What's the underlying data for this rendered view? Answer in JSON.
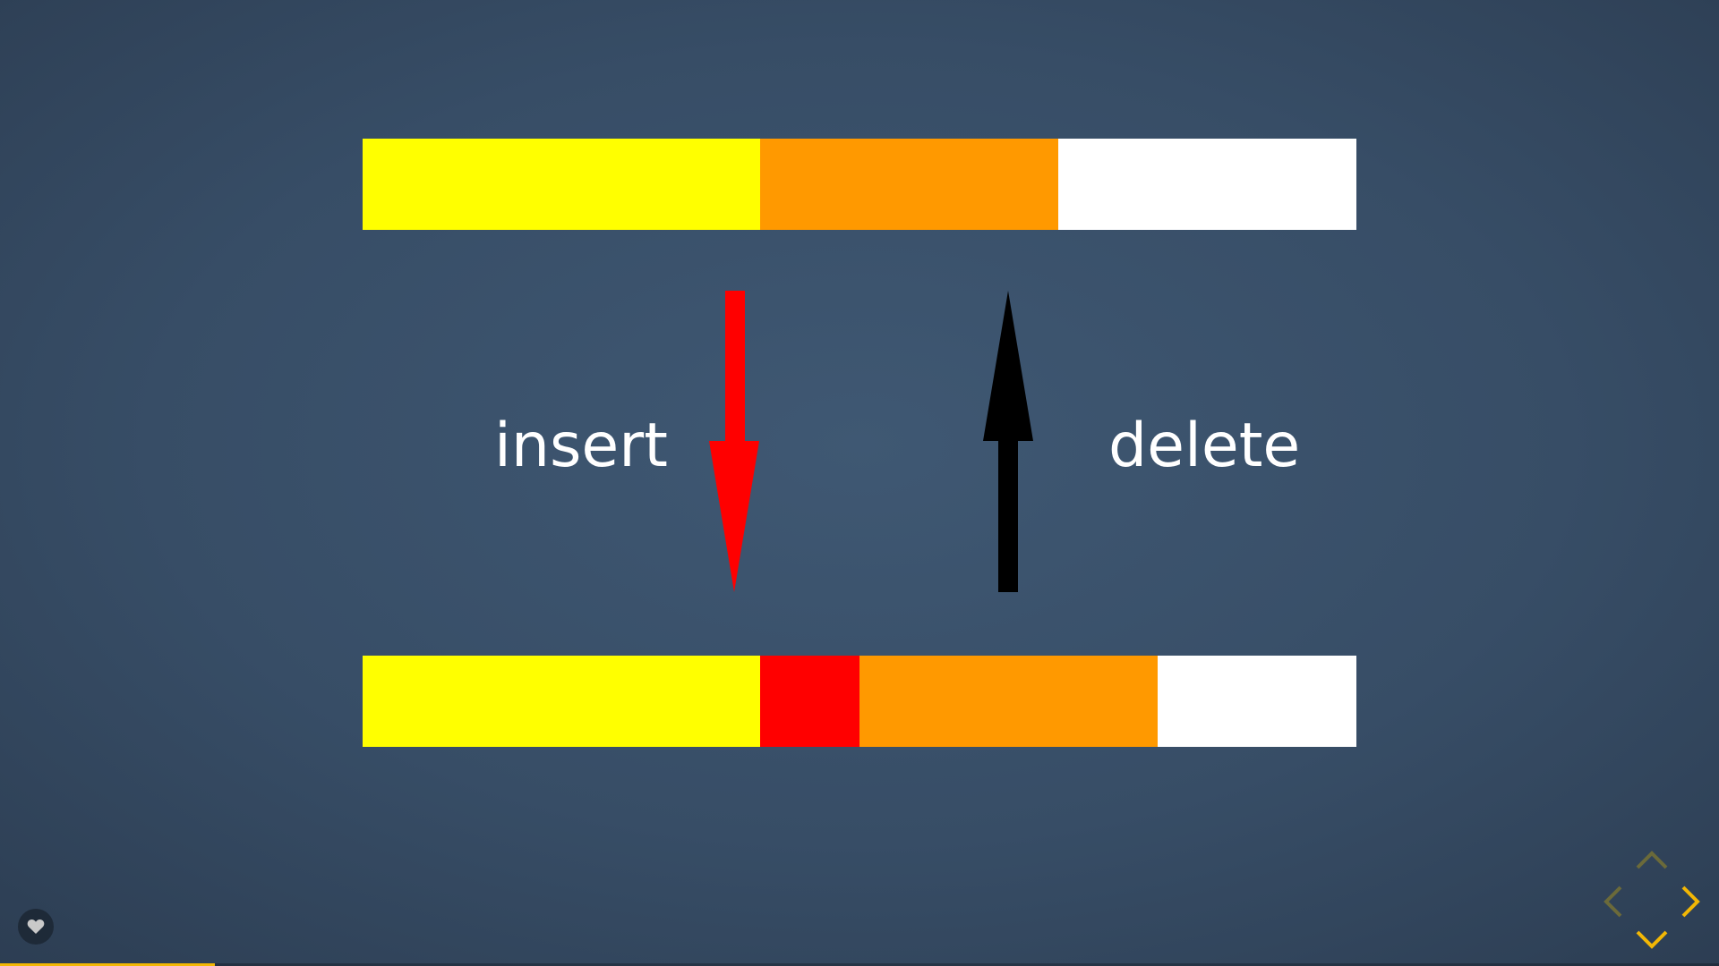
{
  "slide": {
    "label_insert": "insert",
    "label_delete": "delete"
  },
  "buffer_before": {
    "segments": [
      {
        "name": "text-before",
        "color": "#ffff00",
        "fraction": 0.4
      },
      {
        "name": "text-after",
        "color": "#ff9900",
        "fraction": 0.3
      },
      {
        "name": "free-space",
        "color": "#ffffff",
        "fraction": 0.3
      }
    ]
  },
  "buffer_after": {
    "segments": [
      {
        "name": "text-before",
        "color": "#ffff00",
        "fraction": 0.4
      },
      {
        "name": "inserted-text",
        "color": "#ff0000",
        "fraction": 0.1
      },
      {
        "name": "text-after",
        "color": "#ff9900",
        "fraction": 0.3
      },
      {
        "name": "free-space",
        "color": "#ffffff",
        "fraction": 0.2
      }
    ]
  },
  "arrows": {
    "insert_color": "#ff0000",
    "delete_color": "#000000"
  },
  "controls": {
    "heart_icon": "heart-icon",
    "accent_color": "#f2b705",
    "disabled_color": "#6b6a3a",
    "nav_up_enabled": false,
    "nav_left_enabled": false,
    "nav_right_enabled": true,
    "nav_down_enabled": true
  },
  "progress": {
    "fraction": 0.125,
    "color": "#f2b705"
  }
}
